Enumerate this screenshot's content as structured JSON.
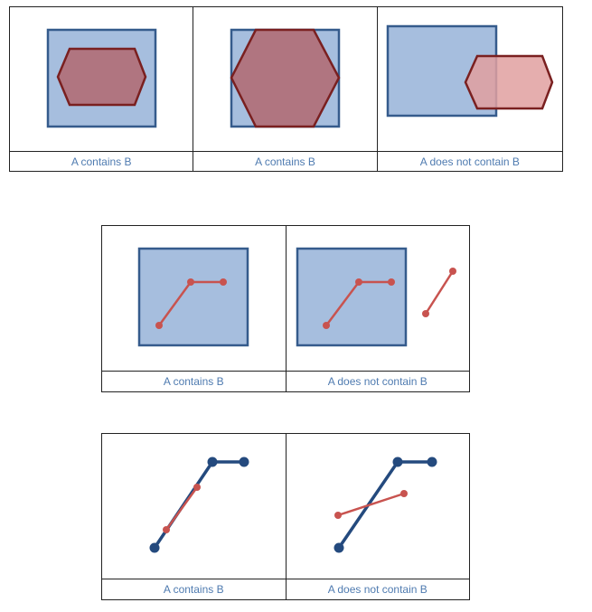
{
  "captions": {
    "row1": [
      "A contains B",
      "A contains B",
      "A does not contain B"
    ],
    "row2": [
      "A contains B",
      "A does not contain B"
    ],
    "row3": [
      "A contains B",
      "A does not contain B"
    ]
  },
  "colors": {
    "region_a_fill": "#A6BEDE",
    "region_a_stroke": "#355B8C",
    "region_b_fill": "#B07580",
    "region_b_fill_outside": "#E0A0A0",
    "region_b_stroke": "#7A2020",
    "line_b": "#C8534F",
    "line_a": "#244A7E",
    "caption_text": "#4F7BB0"
  }
}
